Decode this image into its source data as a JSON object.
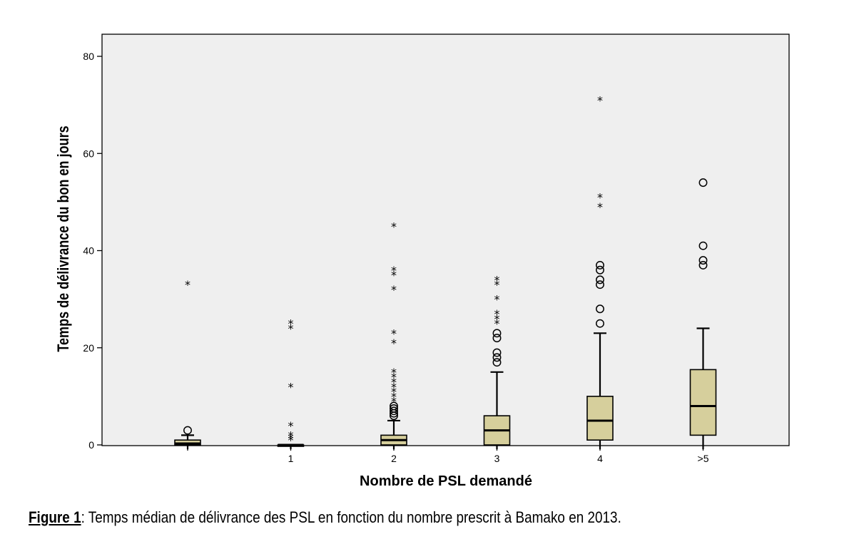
{
  "chart_data": {
    "type": "boxplot",
    "title": "",
    "xlabel": "Nombre de PSL demandé",
    "ylabel": "Temps de délivrance du bon en jours",
    "ylim": [
      0,
      80
    ],
    "yticks": [
      0,
      20,
      40,
      60,
      80
    ],
    "grid": false,
    "legend": "none",
    "colors": {
      "plot_bg": "#efefef",
      "box_fill": "#d6cf9c",
      "stroke": "#000000"
    },
    "categories": [
      "",
      "1",
      "2",
      "3",
      "4",
      ">5"
    ],
    "boxes": [
      {
        "category": "",
        "whisker_low": 0,
        "q1": 0,
        "median": 0.3,
        "q3": 1,
        "whisker_high": 2,
        "outliers": [
          3
        ],
        "extremes": [
          33
        ]
      },
      {
        "category": "1",
        "whisker_low": 0,
        "q1": 0,
        "median": 0,
        "q3": 0,
        "whisker_high": 0,
        "outliers": [],
        "extremes": [
          1,
          1.5,
          2,
          4,
          12,
          24,
          25
        ]
      },
      {
        "category": "2",
        "whisker_low": 0,
        "q1": 0,
        "median": 1,
        "q3": 2,
        "whisker_high": 5,
        "outliers": [
          6,
          6.5,
          7,
          7.5,
          8
        ],
        "extremes": [
          9,
          10,
          11,
          12,
          13,
          14,
          15,
          21,
          23,
          32,
          35,
          36,
          45
        ]
      },
      {
        "category": "3",
        "whisker_low": 0,
        "q1": 0,
        "median": 3,
        "q3": 6,
        "whisker_high": 15,
        "outliers": [
          17,
          18,
          19,
          22,
          23
        ],
        "extremes": [
          25,
          26,
          27,
          30,
          33,
          34
        ]
      },
      {
        "category": "4",
        "whisker_low": 0,
        "q1": 1,
        "median": 5,
        "q3": 10,
        "whisker_high": 23,
        "outliers": [
          25,
          28,
          33,
          34,
          36,
          37
        ],
        "extremes": [
          49,
          51,
          71
        ]
      },
      {
        "category": ">5",
        "whisker_low": 0,
        "q1": 2,
        "median": 8,
        "q3": 15.5,
        "whisker_high": 24,
        "outliers": [
          37,
          38,
          41,
          54
        ],
        "extremes": []
      }
    ]
  },
  "caption": {
    "label": "Figure 1",
    "text": ": Temps médian de délivrance des PSL en fonction du nombre prescrit à Bamako en 2013."
  }
}
